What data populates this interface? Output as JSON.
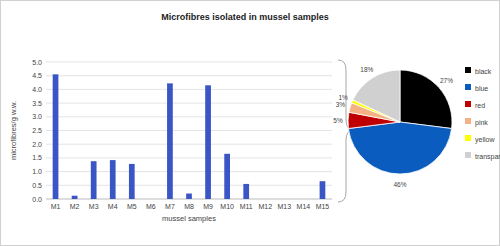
{
  "chart_data": [
    {
      "type": "bar",
      "title": "Microfibres isolated in mussel samples",
      "x_label": "mussel samples",
      "y_label": "microfibres/g w.w.",
      "categories": [
        "M1",
        "M2",
        "M3",
        "M4",
        "M5",
        "M6",
        "M7",
        "M8",
        "M9",
        "M10",
        "M11",
        "M12",
        "M13",
        "M14",
        "M15"
      ],
      "values": [
        4.55,
        0.12,
        1.38,
        1.42,
        1.28,
        0,
        4.22,
        0.2,
        4.15,
        1.65,
        0.55,
        0,
        0,
        0,
        0.65
      ],
      "color": "#3a56c4",
      "ylim": [
        0,
        5
      ],
      "yticks": [
        {
          "value": 0,
          "label": "0.0"
        },
        {
          "value": 0.5,
          "label": "0.5"
        },
        {
          "value": 1,
          "label": "1.0"
        },
        {
          "value": 1.5,
          "label": "1.5"
        },
        {
          "value": 2,
          "label": "2.0"
        },
        {
          "value": 2.5,
          "label": "2.5"
        },
        {
          "value": 3,
          "label": "3.0"
        },
        {
          "value": 3.5,
          "label": "3.5"
        },
        {
          "value": 4,
          "label": "4.0"
        },
        {
          "value": 4.5,
          "label": "4.5"
        },
        {
          "value": 5,
          "label": "5.0"
        }
      ],
      "grid": true
    },
    {
      "type": "pie",
      "categories": [
        "black",
        "blue",
        "red",
        "pink",
        "yellow",
        "transparent"
      ],
      "values": [
        27,
        46,
        5,
        3,
        1,
        18
      ],
      "value_labels": [
        "27%",
        "46%",
        "5%",
        "3%",
        "1%",
        "18%"
      ],
      "colors": [
        "#000000",
        "#0b5cbf",
        "#c00000",
        "#f4b183",
        "#ffff00",
        "#d0d0d0"
      ],
      "data_labels": true,
      "legend": "right"
    }
  ]
}
